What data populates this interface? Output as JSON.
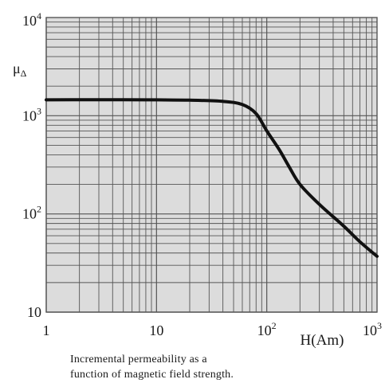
{
  "chart_data": {
    "type": "line",
    "xscale": "log",
    "yscale": "log",
    "xlim": [
      1,
      1000
    ],
    "ylim": [
      10,
      10000
    ],
    "x_ticks": [
      {
        "value": 1,
        "base": "1",
        "exp": ""
      },
      {
        "value": 10,
        "base": "10",
        "exp": ""
      },
      {
        "value": 100,
        "base": "10",
        "exp": "2"
      },
      {
        "value": 1000,
        "base": "10",
        "exp": "3"
      }
    ],
    "y_ticks": [
      {
        "value": 10,
        "base": "10",
        "exp": ""
      },
      {
        "value": 100,
        "base": "10",
        "exp": "2"
      },
      {
        "value": 1000,
        "base": "10",
        "exp": "3"
      },
      {
        "value": 10000,
        "base": "10",
        "exp": "4"
      }
    ],
    "xlabel": "H(Am)",
    "ylabel": {
      "base": "μ",
      "sub": "Δ"
    },
    "grid": true,
    "series": [
      {
        "x": [
          1,
          2,
          5,
          10,
          20,
          40,
          60,
          80,
          100,
          130,
          160,
          200,
          300,
          500,
          700,
          1000
        ],
        "y": [
          1450,
          1455,
          1455,
          1450,
          1440,
          1400,
          1300,
          1050,
          700,
          450,
          300,
          200,
          125,
          75,
          52,
          37
        ]
      }
    ],
    "annotations": [
      "Incremental permeability as a",
      "function of magnetic field strength."
    ]
  },
  "colors": {
    "plot_background": "#dcdcdc",
    "grid": "#555555",
    "curve": "#111111",
    "text": "#1a1a1a"
  }
}
